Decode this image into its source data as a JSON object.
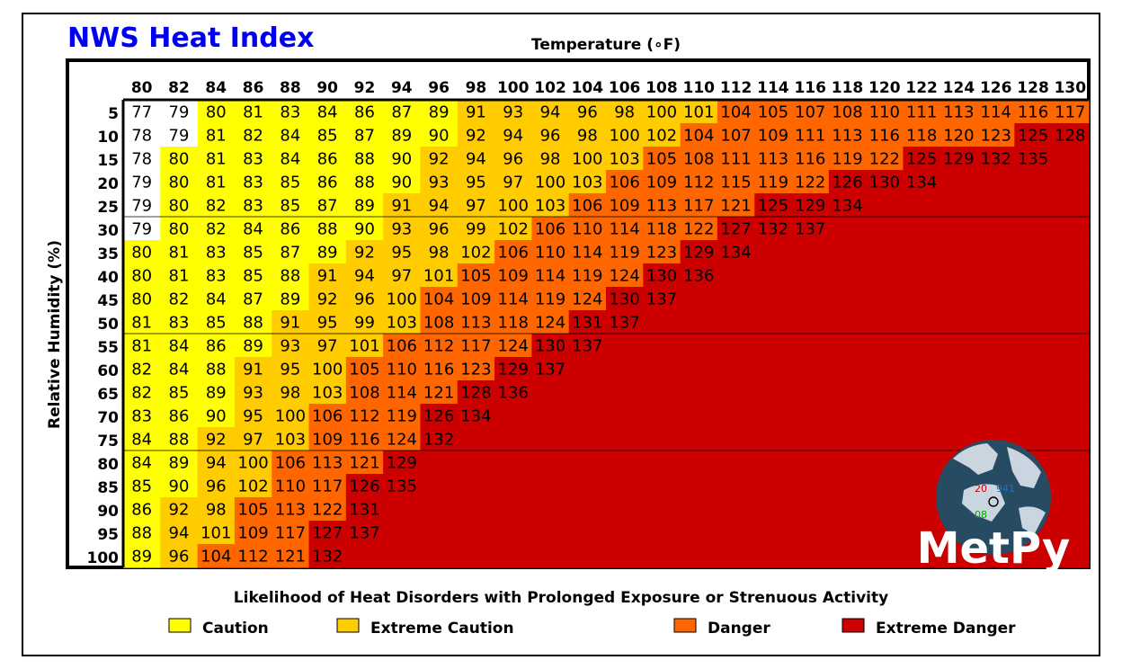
{
  "chart_data": {
    "type": "heatmap",
    "title": "NWS Heat Index",
    "xlabel": "Temperature (∘F)",
    "ylabel": "Relative Humidity (%)",
    "temperatures": [
      80,
      82,
      84,
      86,
      88,
      90,
      92,
      94,
      96,
      98,
      100,
      102,
      104,
      106,
      108,
      110,
      112,
      114,
      116,
      118,
      120,
      122,
      124,
      126,
      128,
      130
    ],
    "humidities": [
      5,
      10,
      15,
      20,
      25,
      30,
      35,
      40,
      45,
      50,
      55,
      60,
      65,
      70,
      75,
      80,
      85,
      90,
      95,
      100
    ],
    "values": [
      [
        77,
        79,
        80,
        81,
        83,
        84,
        86,
        87,
        89,
        91,
        93,
        94,
        96,
        98,
        100,
        101,
        104,
        105,
        107,
        108,
        110,
        111,
        113,
        114,
        116,
        117
      ],
      [
        78,
        79,
        81,
        82,
        84,
        85,
        87,
        89,
        90,
        92,
        94,
        96,
        98,
        100,
        102,
        104,
        107,
        109,
        111,
        113,
        116,
        118,
        120,
        123,
        125,
        128
      ],
      [
        78,
        80,
        81,
        83,
        84,
        86,
        88,
        90,
        92,
        94,
        96,
        98,
        100,
        103,
        105,
        108,
        111,
        113,
        116,
        119,
        122,
        125,
        129,
        132,
        135,
        null
      ],
      [
        79,
        80,
        81,
        83,
        85,
        86,
        88,
        90,
        93,
        95,
        97,
        100,
        103,
        106,
        109,
        112,
        115,
        119,
        122,
        126,
        130,
        134,
        null,
        null,
        null,
        null
      ],
      [
        79,
        80,
        82,
        83,
        85,
        87,
        89,
        91,
        94,
        97,
        100,
        103,
        106,
        109,
        113,
        117,
        121,
        125,
        129,
        134,
        null,
        null,
        null,
        null,
        null,
        null
      ],
      [
        79,
        80,
        82,
        84,
        86,
        88,
        90,
        93,
        96,
        99,
        102,
        106,
        110,
        114,
        118,
        122,
        127,
        132,
        137,
        null,
        null,
        null,
        null,
        null,
        null,
        null
      ],
      [
        80,
        81,
        83,
        85,
        87,
        89,
        92,
        95,
        98,
        102,
        106,
        110,
        114,
        119,
        123,
        129,
        134,
        null,
        null,
        null,
        null,
        null,
        null,
        null,
        null,
        null
      ],
      [
        80,
        81,
        83,
        85,
        88,
        91,
        94,
        97,
        101,
        105,
        109,
        114,
        119,
        124,
        130,
        136,
        null,
        null,
        null,
        null,
        null,
        null,
        null,
        null,
        null,
        null
      ],
      [
        80,
        82,
        84,
        87,
        89,
        92,
        96,
        100,
        104,
        109,
        114,
        119,
        124,
        130,
        137,
        null,
        null,
        null,
        null,
        null,
        null,
        null,
        null,
        null,
        null,
        null
      ],
      [
        81,
        83,
        85,
        88,
        91,
        95,
        99,
        103,
        108,
        113,
        118,
        124,
        131,
        137,
        null,
        null,
        null,
        null,
        null,
        null,
        null,
        null,
        null,
        null,
        null,
        null
      ],
      [
        81,
        84,
        86,
        89,
        93,
        97,
        101,
        106,
        112,
        117,
        124,
        130,
        137,
        null,
        null,
        null,
        null,
        null,
        null,
        null,
        null,
        null,
        null,
        null,
        null,
        null
      ],
      [
        82,
        84,
        88,
        91,
        95,
        100,
        105,
        110,
        116,
        123,
        129,
        137,
        null,
        null,
        null,
        null,
        null,
        null,
        null,
        null,
        null,
        null,
        null,
        null,
        null,
        null
      ],
      [
        82,
        85,
        89,
        93,
        98,
        103,
        108,
        114,
        121,
        128,
        136,
        null,
        null,
        null,
        null,
        null,
        null,
        null,
        null,
        null,
        null,
        null,
        null,
        null,
        null,
        null
      ],
      [
        83,
        86,
        90,
        95,
        100,
        106,
        112,
        119,
        126,
        134,
        null,
        null,
        null,
        null,
        null,
        null,
        null,
        null,
        null,
        null,
        null,
        null,
        null,
        null,
        null,
        null
      ],
      [
        84,
        88,
        92,
        97,
        103,
        109,
        116,
        124,
        132,
        null,
        null,
        null,
        null,
        null,
        null,
        null,
        null,
        null,
        null,
        null,
        null,
        null,
        null,
        null,
        null,
        null
      ],
      [
        84,
        89,
        94,
        100,
        106,
        113,
        121,
        129,
        null,
        null,
        null,
        null,
        null,
        null,
        null,
        null,
        null,
        null,
        null,
        null,
        null,
        null,
        null,
        null,
        null,
        null
      ],
      [
        85,
        90,
        96,
        102,
        110,
        117,
        126,
        135,
        null,
        null,
        null,
        null,
        null,
        null,
        null,
        null,
        null,
        null,
        null,
        null,
        null,
        null,
        null,
        null,
        null,
        null
      ],
      [
        86,
        92,
        98,
        105,
        113,
        122,
        131,
        null,
        null,
        null,
        null,
        null,
        null,
        null,
        null,
        null,
        null,
        null,
        null,
        null,
        null,
        null,
        null,
        null,
        null,
        null
      ],
      [
        88,
        94,
        101,
        109,
        117,
        127,
        137,
        null,
        null,
        null,
        null,
        null,
        null,
        null,
        null,
        null,
        null,
        null,
        null,
        null,
        null,
        null,
        null,
        null,
        null,
        null
      ],
      [
        89,
        96,
        104,
        112,
        121,
        132,
        null,
        null,
        null,
        null,
        null,
        null,
        null,
        null,
        null,
        null,
        null,
        null,
        null,
        null,
        null,
        null,
        null,
        null,
        null,
        null
      ]
    ],
    "categories": [
      {
        "name": "Caution",
        "min": 80,
        "max": 90,
        "color": "#ffff00"
      },
      {
        "name": "Extreme Caution",
        "min": 91,
        "max": 103,
        "color": "#ffcc00"
      },
      {
        "name": "Danger",
        "min": 104,
        "max": 124,
        "color": "#ff6600"
      },
      {
        "name": "Extreme Danger",
        "min": 125,
        "max": null,
        "color": "#cc0000"
      }
    ],
    "legend_title": "Likelihood of Heat Disorders with Prolonged Exposure or Strenuous Activity",
    "legend_position": "bottom",
    "grid_lines_after_rows": [
      5,
      10,
      15
    ]
  },
  "colors": {
    "title": "#0000ee",
    "below_caution": "#ffffff",
    "frame": "#000000"
  },
  "logo": {
    "text": "MetPy",
    "globe_labels": [
      "20",
      "941",
      "08"
    ]
  }
}
